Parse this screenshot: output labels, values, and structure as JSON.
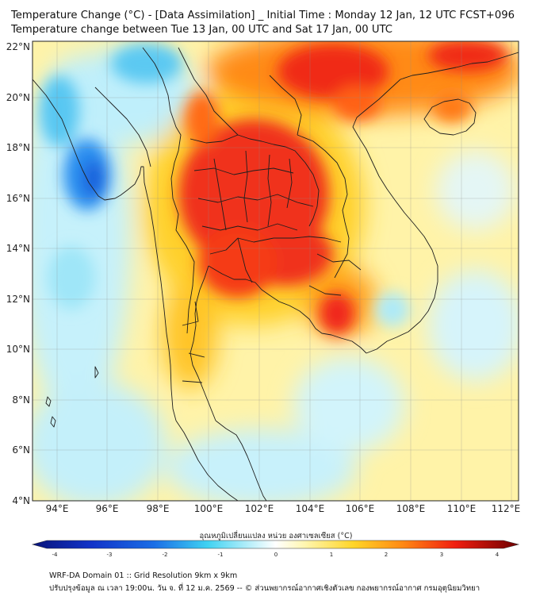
{
  "header": {
    "title_line1": "Temperature Change (°C) - [Data Assimilation] _ Initial Time : Monday 12 Jan, 12 UTC FCST+096",
    "title_line2": "Temperature change between Tue 13 Jan, 00 UTC and Sat 17 Jan, 00 UTC"
  },
  "map": {
    "lat_labels": [
      "22°N",
      "20°N",
      "18°N",
      "16°N",
      "14°N",
      "12°N",
      "10°N",
      "8°N",
      "6°N",
      "4°N"
    ],
    "lon_labels": [
      "94°E",
      "96°E",
      "98°E",
      "100°E",
      "102°E",
      "104°E",
      "106°E",
      "108°E",
      "110°E",
      "112°E"
    ],
    "variable": "temperature change",
    "units": "°C",
    "range": [
      -4,
      4
    ]
  },
  "colorbar": {
    "label": "อุณหภูมิเปลี่ยนแปลง หน่วย องศาเซลเซียส (°C)",
    "ticks": [
      "-4",
      "-3",
      "-2",
      "-1",
      "0",
      "1",
      "2",
      "3",
      "4"
    ],
    "colors": {
      "dark_blue": "#08147a",
      "blue": "#1a6ee6",
      "cyan": "#3fd2f2",
      "light_cyan": "#bdf0fa",
      "white": "#ffffff",
      "light_yellow": "#fff6b0",
      "yellow": "#ffd528",
      "orange": "#ff8a14",
      "red": "#f01e10",
      "dark_red": "#6e0000"
    }
  },
  "footer": {
    "line1": "WRF-DA Domain 01 :: Grid Resolution 9km x 9km",
    "line2": "ปรับปรุงข้อมูล ณ เวลา 19:00น. วัน จ. ที่ 12 ม.ค. 2569 -- © ส่วนพยากรณ์อากาศเชิงตัวเลข กองพยากรณ์อากาศ กรมอุตุนิยมวิทยา"
  }
}
